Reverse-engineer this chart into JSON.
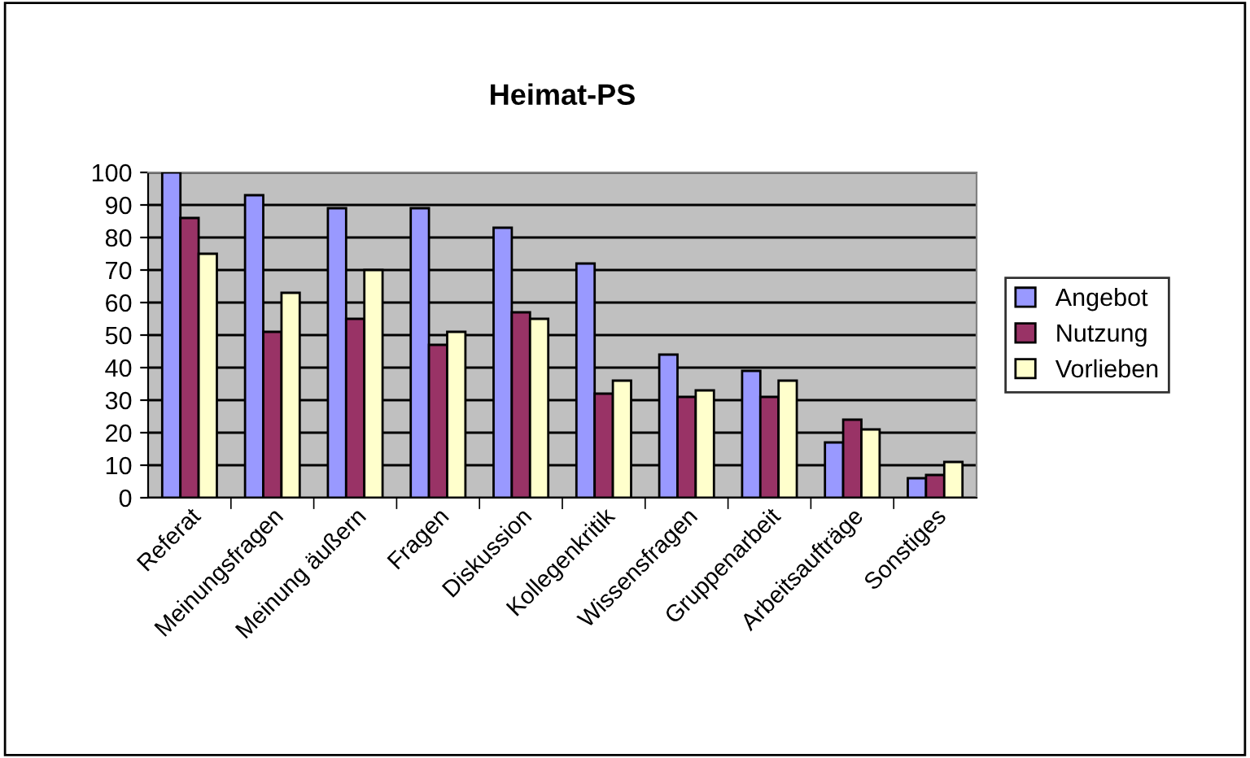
{
  "chart_data": {
    "type": "bar",
    "title": "Heimat-PS",
    "categories": [
      "Referat",
      "Meinungsfragen",
      "Meinung äußern",
      "Fragen",
      "Diskussion",
      "Kollegenkritik",
      "Wissensfragen",
      "Gruppenarbeit",
      "Arbeitsaufträge",
      "Sonstiges"
    ],
    "series": [
      {
        "name": "Angebot",
        "color": "#9999ff",
        "values": [
          100,
          93,
          89,
          89,
          83,
          72,
          44,
          39,
          17,
          6
        ]
      },
      {
        "name": "Nutzung",
        "color": "#993366",
        "values": [
          86,
          51,
          55,
          47,
          57,
          32,
          31,
          31,
          24,
          7
        ]
      },
      {
        "name": "Vorlieben",
        "color": "#ffffcc",
        "values": [
          75,
          63,
          70,
          51,
          55,
          36,
          33,
          36,
          21,
          11
        ]
      }
    ],
    "ylim": [
      0,
      100
    ],
    "yticks": [
      0,
      10,
      20,
      30,
      40,
      50,
      60,
      70,
      80,
      90,
      100
    ],
    "grid": "y",
    "legend": "right"
  }
}
